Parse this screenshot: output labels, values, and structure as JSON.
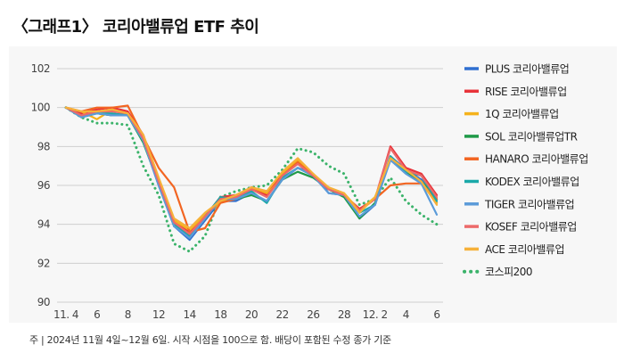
{
  "title": "〈그래프1〉 코리아밸류업 ETF 추이",
  "note": "주 | 2024년 11월 4일~12월 6일. 시작 시점을 100으로 함. 배당이 포함된 수정 종가 기준",
  "chart_data": {
    "type": "line",
    "title": "〈그래프1〉 코리아밸류업 ETF 추이",
    "xlabel": "",
    "ylabel": "",
    "ylim": [
      90,
      102
    ],
    "yticks": [
      90,
      92,
      94,
      96,
      98,
      100,
      102
    ],
    "x": [
      "11.4",
      "11.5",
      "11.6",
      "11.7",
      "11.8",
      "11.11",
      "11.12",
      "11.13",
      "11.14",
      "11.15",
      "11.18",
      "11.19",
      "11.20",
      "11.21",
      "11.22",
      "11.25",
      "11.26",
      "11.27",
      "11.28",
      "11.29",
      "12.2",
      "12.3",
      "12.4",
      "12.5",
      "12.6"
    ],
    "xtick_labels": [
      "11. 4",
      "6",
      "8",
      "12",
      "14",
      "18",
      "20",
      "22",
      "26",
      "28",
      "12. 2",
      "4",
      "6"
    ],
    "grid": "horizontal",
    "legend_position": "right",
    "series": [
      {
        "name": "PLUS 코리아밸류업",
        "color": "#2f6fd0",
        "style": "solid",
        "values": [
          100,
          99.6,
          99.7,
          99.6,
          99.7,
          98.3,
          96.0,
          93.9,
          93.2,
          94.2,
          95.2,
          95.2,
          95.6,
          95.2,
          96.3,
          96.9,
          96.6,
          95.6,
          95.5,
          94.3,
          95.0,
          97.5,
          96.8,
          96.3,
          95.1
        ]
      },
      {
        "name": "RISE 코리아밸류업",
        "color": "#e8333a",
        "style": "solid",
        "values": [
          100,
          99.7,
          99.9,
          100,
          99.8,
          98.6,
          96.3,
          94.2,
          93.6,
          94.4,
          95.4,
          95.5,
          95.9,
          95.5,
          96.6,
          97.3,
          96.5,
          95.8,
          95.5,
          94.8,
          95.3,
          98.0,
          96.9,
          96.6,
          95.5
        ]
      },
      {
        "name": "1Q 코리아밸류업",
        "color": "#f5b21b",
        "style": "solid",
        "values": [
          100,
          99.8,
          99.4,
          99.9,
          99.6,
          98.5,
          96.3,
          94.2,
          93.7,
          94.5,
          95.1,
          95.4,
          95.9,
          95.6,
          96.6,
          97.3,
          96.5,
          95.8,
          95.6,
          94.7,
          95.4,
          97.3,
          96.7,
          96.1,
          95.1
        ]
      },
      {
        "name": "SOL 코리아밸류업TR",
        "color": "#1f9a48",
        "style": "solid",
        "values": [
          100,
          99.5,
          99.7,
          99.6,
          99.6,
          98.2,
          96.1,
          93.9,
          93.4,
          94.3,
          95.3,
          95.3,
          95.5,
          95.2,
          96.3,
          96.7,
          96.4,
          95.8,
          95.4,
          94.3,
          95.1,
          97.4,
          96.7,
          96.2,
          95.3
        ]
      },
      {
        "name": "HANARO 코리아밸류업",
        "color": "#f26522",
        "style": "solid",
        "values": [
          100,
          99.8,
          100,
          100,
          100.1,
          98.5,
          96.9,
          95.9,
          93.6,
          93.8,
          95.1,
          95.3,
          95.9,
          95.7,
          96.5,
          97.2,
          96.5,
          95.8,
          95.5,
          94.7,
          95.3,
          96.0,
          96.1,
          96.1,
          95.3
        ]
      },
      {
        "name": "KODEX 코리아밸류업",
        "color": "#1aa8a8",
        "style": "solid",
        "values": [
          100,
          99.6,
          99.7,
          99.7,
          99.6,
          98.3,
          96.1,
          94.0,
          93.4,
          94.4,
          95.4,
          95.3,
          95.7,
          95.1,
          96.4,
          96.9,
          96.5,
          95.8,
          95.5,
          94.6,
          95.0,
          97.5,
          96.7,
          96.5,
          95.2
        ]
      },
      {
        "name": "TIGER 코리아밸류업",
        "color": "#5b9bd9",
        "style": "solid",
        "values": [
          100,
          99.5,
          99.7,
          99.6,
          99.6,
          98.3,
          96.0,
          93.9,
          93.3,
          94.3,
          95.3,
          95.3,
          95.6,
          95.2,
          96.3,
          96.9,
          96.5,
          95.6,
          95.5,
          94.4,
          95.0,
          97.3,
          96.6,
          96.1,
          94.5
        ]
      },
      {
        "name": "KOSEF 코리아밸류업",
        "color": "#ec6a6a",
        "style": "solid",
        "values": [
          100,
          99.6,
          99.8,
          99.8,
          99.7,
          98.4,
          96.2,
          94.1,
          93.5,
          94.4,
          95.3,
          95.4,
          95.8,
          95.4,
          96.5,
          97.1,
          96.5,
          95.8,
          95.5,
          94.7,
          95.3,
          97.9,
          96.8,
          96.5,
          95.4
        ]
      },
      {
        "name": "ACE 코리아밸류업",
        "color": "#f6b13a",
        "style": "solid",
        "values": [
          100,
          99.8,
          99.8,
          99.9,
          99.7,
          98.6,
          96.4,
          94.3,
          93.8,
          94.6,
          95.2,
          95.5,
          95.9,
          95.7,
          96.7,
          97.4,
          96.6,
          95.9,
          95.6,
          94.6,
          95.4,
          97.4,
          96.8,
          96.2,
          95.0
        ]
      },
      {
        "name": "코스피200",
        "color": "#3bb36a",
        "style": "dotted",
        "values": [
          100,
          99.5,
          99.2,
          99.2,
          99.1,
          97.0,
          95.5,
          93.0,
          92.6,
          93.4,
          95.4,
          95.7,
          95.9,
          96.0,
          96.8,
          97.9,
          97.7,
          97.0,
          96.6,
          95.0,
          95.3,
          96.4,
          95.2,
          94.5,
          94.0
        ]
      }
    ]
  }
}
